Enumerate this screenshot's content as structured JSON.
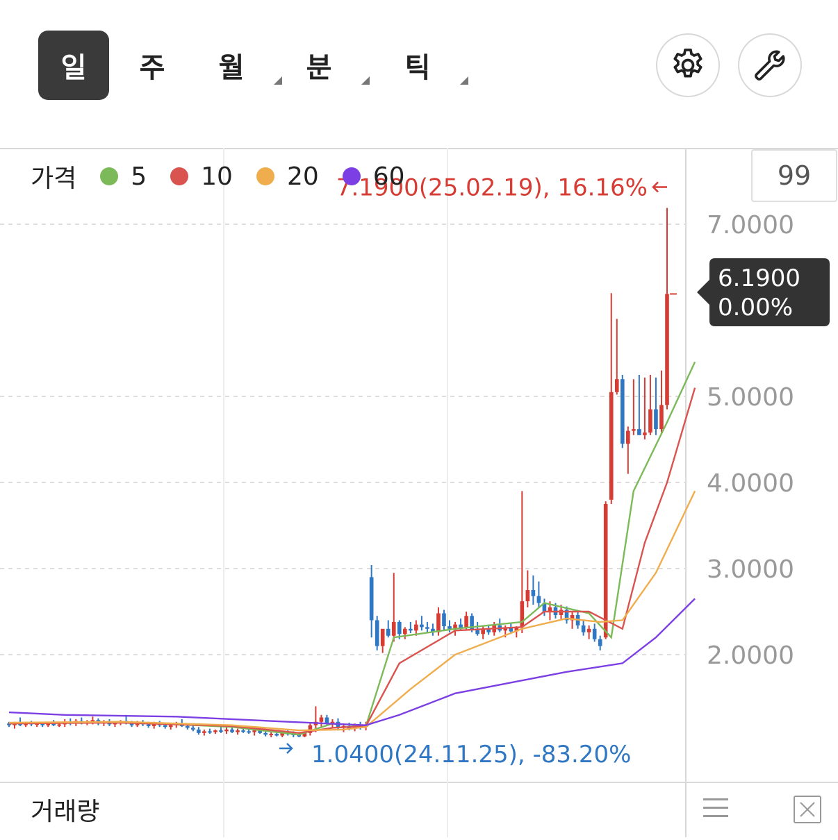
{
  "tabs": [
    {
      "label": "일",
      "active": true,
      "has_dropdown": false
    },
    {
      "label": "주",
      "active": false,
      "has_dropdown": false
    },
    {
      "label": "월",
      "active": false,
      "has_dropdown": true
    },
    {
      "label": "분",
      "active": false,
      "has_dropdown": true
    },
    {
      "label": "틱",
      "active": false,
      "has_dropdown": true
    }
  ],
  "buttons": {
    "settings_icon": "gear-icon",
    "tools_icon": "wrench-icon"
  },
  "legend": {
    "label": "가격",
    "items": [
      {
        "label": "5",
        "color": "#7cba59"
      },
      {
        "label": "10",
        "color": "#d9534f"
      },
      {
        "label": "20",
        "color": "#f0ad4e"
      },
      {
        "label": "60",
        "color": "#7b3fe4"
      }
    ]
  },
  "period_box": "99",
  "current_price": {
    "price": "6.1900",
    "change": "0.00%"
  },
  "high_annotation": "7.1900(25.02.19), 16.16%",
  "low_annotation": "1.0400(24.11.25), -83.20%",
  "volume_label": "거래량",
  "colors": {
    "up": "#d63c34",
    "down": "#2f77c3",
    "tag_bg": "#333333",
    "axis_text": "#999999"
  },
  "chart_data": {
    "type": "candlestick",
    "ylim": [
      1.0,
      7.2
    ],
    "yticks": [
      "7.0000",
      "5.0000",
      "4.0000",
      "3.0000",
      "2.0000"
    ],
    "ytick_values": [
      7.0,
      5.0,
      4.0,
      3.0,
      2.0
    ],
    "high": {
      "value": 7.19,
      "date": "25.02.19",
      "pct": "16.16%"
    },
    "low": {
      "value": 1.04,
      "date": "24.11.25",
      "pct": "-83.20%"
    },
    "candles": [
      [
        1.2,
        1.22,
        1.16,
        1.18
      ],
      [
        1.18,
        1.22,
        1.14,
        1.2
      ],
      [
        1.2,
        1.27,
        1.17,
        1.18
      ],
      [
        1.18,
        1.22,
        1.16,
        1.21
      ],
      [
        1.21,
        1.23,
        1.17,
        1.19
      ],
      [
        1.19,
        1.22,
        1.16,
        1.2
      ],
      [
        1.2,
        1.21,
        1.16,
        1.18
      ],
      [
        1.18,
        1.22,
        1.16,
        1.21
      ],
      [
        1.21,
        1.24,
        1.17,
        1.18
      ],
      [
        1.18,
        1.22,
        1.16,
        1.19
      ],
      [
        1.19,
        1.25,
        1.16,
        1.22
      ],
      [
        1.22,
        1.26,
        1.18,
        1.2
      ],
      [
        1.2,
        1.25,
        1.17,
        1.23
      ],
      [
        1.23,
        1.27,
        1.19,
        1.21
      ],
      [
        1.21,
        1.24,
        1.18,
        1.22
      ],
      [
        1.22,
        1.28,
        1.19,
        1.24
      ],
      [
        1.24,
        1.26,
        1.18,
        1.2
      ],
      [
        1.2,
        1.24,
        1.17,
        1.22
      ],
      [
        1.22,
        1.25,
        1.17,
        1.19
      ],
      [
        1.19,
        1.23,
        1.16,
        1.21
      ],
      [
        1.21,
        1.24,
        1.18,
        1.23
      ],
      [
        1.23,
        1.3,
        1.19,
        1.2
      ],
      [
        1.2,
        1.23,
        1.16,
        1.18
      ],
      [
        1.18,
        1.23,
        1.16,
        1.21
      ],
      [
        1.21,
        1.24,
        1.17,
        1.19
      ],
      [
        1.19,
        1.22,
        1.15,
        1.17
      ],
      [
        1.17,
        1.22,
        1.14,
        1.2
      ],
      [
        1.2,
        1.23,
        1.16,
        1.18
      ],
      [
        1.18,
        1.21,
        1.14,
        1.16
      ],
      [
        1.16,
        1.2,
        1.13,
        1.18
      ],
      [
        1.18,
        1.22,
        1.15,
        1.2
      ],
      [
        1.2,
        1.25,
        1.16,
        1.17
      ],
      [
        1.17,
        1.2,
        1.13,
        1.15
      ],
      [
        1.15,
        1.18,
        1.11,
        1.13
      ],
      [
        1.13,
        1.16,
        1.07,
        1.09
      ],
      [
        1.09,
        1.13,
        1.06,
        1.11
      ],
      [
        1.11,
        1.14,
        1.08,
        1.1
      ],
      [
        1.1,
        1.13,
        1.08,
        1.12
      ],
      [
        1.12,
        1.16,
        1.09,
        1.11
      ],
      [
        1.11,
        1.18,
        1.08,
        1.13
      ],
      [
        1.13,
        1.17,
        1.09,
        1.1
      ],
      [
        1.1,
        1.14,
        1.07,
        1.12
      ],
      [
        1.12,
        1.15,
        1.09,
        1.11
      ],
      [
        1.11,
        1.14,
        1.08,
        1.1
      ],
      [
        1.1,
        1.13,
        1.06,
        1.12
      ],
      [
        1.12,
        1.15,
        1.08,
        1.09
      ],
      [
        1.09,
        1.12,
        1.05,
        1.07
      ],
      [
        1.07,
        1.1,
        1.04,
        1.08
      ],
      [
        1.08,
        1.11,
        1.05,
        1.06
      ],
      [
        1.06,
        1.1,
        1.04,
        1.09
      ],
      [
        1.09,
        1.12,
        1.06,
        1.08
      ],
      [
        1.08,
        1.11,
        1.04,
        1.07
      ],
      [
        1.07,
        1.1,
        1.04,
        1.05
      ],
      [
        1.05,
        1.11,
        1.04,
        1.09
      ],
      [
        1.09,
        1.2,
        1.06,
        1.18
      ],
      [
        1.18,
        1.4,
        1.1,
        1.22
      ],
      [
        1.22,
        1.3,
        1.15,
        1.27
      ],
      [
        1.27,
        1.3,
        1.18,
        1.2
      ],
      [
        1.2,
        1.25,
        1.15,
        1.22
      ],
      [
        1.22,
        1.26,
        1.12,
        1.15
      ],
      [
        1.15,
        1.2,
        1.1,
        1.17
      ],
      [
        1.17,
        1.21,
        1.12,
        1.14
      ],
      [
        1.14,
        1.2,
        1.11,
        1.18
      ],
      [
        1.18,
        1.22,
        1.13,
        1.16
      ],
      [
        1.16,
        1.22,
        1.12,
        1.19
      ],
      [
        2.9,
        3.04,
        2.2,
        2.4
      ],
      [
        2.4,
        2.45,
        2.05,
        2.1
      ],
      [
        2.1,
        2.25,
        2.02,
        2.3
      ],
      [
        2.3,
        2.4,
        2.2,
        2.22
      ],
      [
        2.22,
        2.95,
        2.15,
        2.38
      ],
      [
        2.38,
        2.4,
        2.18,
        2.24
      ],
      [
        2.24,
        2.32,
        2.18,
        2.3
      ],
      [
        2.3,
        2.38,
        2.25,
        2.28
      ],
      [
        2.28,
        2.4,
        2.22,
        2.35
      ],
      [
        2.35,
        2.45,
        2.28,
        2.32
      ],
      [
        2.32,
        2.38,
        2.25,
        2.3
      ],
      [
        2.3,
        2.36,
        2.22,
        2.26
      ],
      [
        2.26,
        2.55,
        2.22,
        2.48
      ],
      [
        2.48,
        2.52,
        2.28,
        2.33
      ],
      [
        2.33,
        2.4,
        2.26,
        2.3
      ],
      [
        2.3,
        2.38,
        2.22,
        2.35
      ],
      [
        2.35,
        2.42,
        2.28,
        2.31
      ],
      [
        2.31,
        2.5,
        2.28,
        2.45
      ],
      [
        2.45,
        2.48,
        2.26,
        2.29
      ],
      [
        2.29,
        2.38,
        2.22,
        2.24
      ],
      [
        2.24,
        2.34,
        2.18,
        2.3
      ],
      [
        2.3,
        2.35,
        2.23,
        2.26
      ],
      [
        2.26,
        2.38,
        2.22,
        2.34
      ],
      [
        2.34,
        2.42,
        2.26,
        2.28
      ],
      [
        2.28,
        2.34,
        2.2,
        2.31
      ],
      [
        2.31,
        2.36,
        2.24,
        2.27
      ],
      [
        2.27,
        2.33,
        2.2,
        2.32
      ],
      [
        2.32,
        3.9,
        2.25,
        2.62
      ],
      [
        2.62,
        2.98,
        2.55,
        2.75
      ],
      [
        2.75,
        2.92,
        2.58,
        2.68
      ],
      [
        2.68,
        2.85,
        2.55,
        2.6
      ],
      [
        2.6,
        2.65,
        2.45,
        2.5
      ],
      [
        2.5,
        2.62,
        2.4,
        2.55
      ],
      [
        2.55,
        2.6,
        2.42,
        2.46
      ],
      [
        2.46,
        2.58,
        2.4,
        2.52
      ],
      [
        2.52,
        2.56,
        2.36,
        2.4
      ],
      [
        2.4,
        2.5,
        2.3,
        2.46
      ],
      [
        2.46,
        2.5,
        2.3,
        2.34
      ],
      [
        2.34,
        2.4,
        2.22,
        2.26
      ],
      [
        2.26,
        2.34,
        2.18,
        2.3
      ],
      [
        2.3,
        2.36,
        2.15,
        2.18
      ],
      [
        2.18,
        2.22,
        2.05,
        2.1
      ],
      [
        2.2,
        3.78,
        2.18,
        3.75
      ],
      [
        3.8,
        6.2,
        3.75,
        5.05
      ],
      [
        5.05,
        5.9,
        5.02,
        5.2
      ],
      [
        5.2,
        5.25,
        4.4,
        4.45
      ],
      [
        4.45,
        4.65,
        4.1,
        4.6
      ],
      [
        4.6,
        5.2,
        4.55,
        4.62
      ],
      [
        4.62,
        5.25,
        4.58,
        4.55
      ],
      [
        4.55,
        5.22,
        4.5,
        4.58
      ],
      [
        4.58,
        5.25,
        4.55,
        4.85
      ],
      [
        4.85,
        5.22,
        4.55,
        4.62
      ],
      [
        4.62,
        5.3,
        4.58,
        4.9
      ],
      [
        4.9,
        7.19,
        4.85,
        6.19
      ]
    ],
    "ma": [
      {
        "name": "5",
        "color": "#7cba59",
        "values": [
          [
            0,
            1.2
          ],
          [
            20,
            1.22
          ],
          [
            40,
            1.16
          ],
          [
            52,
            1.07
          ],
          [
            58,
            1.2
          ],
          [
            64,
            1.17
          ],
          [
            69,
            2.2
          ],
          [
            80,
            2.3
          ],
          [
            92,
            2.38
          ],
          [
            96,
            2.6
          ],
          [
            104,
            2.48
          ],
          [
            108,
            2.2
          ],
          [
            112,
            3.9
          ],
          [
            118,
            4.7
          ],
          [
            123,
            5.4
          ]
        ]
      },
      {
        "name": "10",
        "color": "#d9534f",
        "values": [
          [
            0,
            1.2
          ],
          [
            20,
            1.21
          ],
          [
            40,
            1.17
          ],
          [
            52,
            1.09
          ],
          [
            58,
            1.15
          ],
          [
            64,
            1.17
          ],
          [
            70,
            1.9
          ],
          [
            80,
            2.28
          ],
          [
            92,
            2.32
          ],
          [
            96,
            2.5
          ],
          [
            104,
            2.5
          ],
          [
            110,
            2.3
          ],
          [
            114,
            3.3
          ],
          [
            118,
            4.0
          ],
          [
            123,
            5.1
          ]
        ]
      },
      {
        "name": "20",
        "color": "#f0ad4e",
        "values": [
          [
            0,
            1.21
          ],
          [
            20,
            1.22
          ],
          [
            40,
            1.18
          ],
          [
            52,
            1.12
          ],
          [
            60,
            1.13
          ],
          [
            64,
            1.16
          ],
          [
            72,
            1.6
          ],
          [
            80,
            2.0
          ],
          [
            92,
            2.3
          ],
          [
            100,
            2.42
          ],
          [
            106,
            2.38
          ],
          [
            110,
            2.4
          ],
          [
            116,
            2.95
          ],
          [
            123,
            3.9
          ]
        ]
      },
      {
        "name": "60",
        "color": "#7b3fe4",
        "values": [
          [
            0,
            1.33
          ],
          [
            10,
            1.3
          ],
          [
            30,
            1.28
          ],
          [
            50,
            1.22
          ],
          [
            64,
            1.18
          ],
          [
            70,
            1.3
          ],
          [
            80,
            1.55
          ],
          [
            92,
            1.7
          ],
          [
            100,
            1.8
          ],
          [
            110,
            1.9
          ],
          [
            116,
            2.2
          ],
          [
            123,
            2.65
          ]
        ]
      }
    ]
  }
}
